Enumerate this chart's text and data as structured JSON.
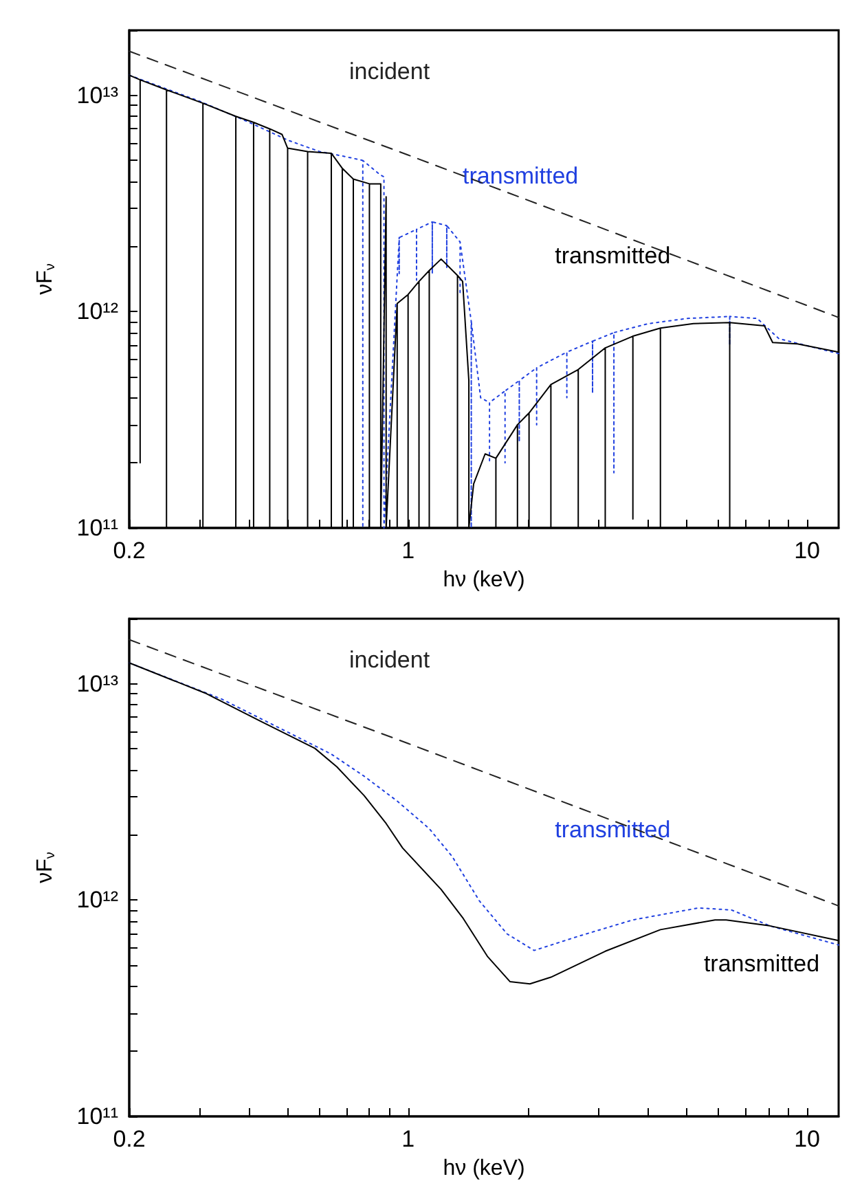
{
  "chart_data": [
    {
      "type": "line",
      "xlabel": "hν (keV)",
      "ylabel": "νF$_{ν}$",
      "log": "xy",
      "marker": "none",
      "xlim": [
        0.2,
        12
      ],
      "ylim": [
        100000000000.0,
        20000000000000.0
      ],
      "xticks": [
        0.2,
        {
          "value": 0.3,
          "label": null
        },
        {
          "value": 0.4,
          "label": null
        },
        {
          "value": 0.5,
          "label": null
        },
        {
          "value": 0.6,
          "label": null
        },
        {
          "value": 0.7,
          "label": null
        },
        {
          "value": 0.8,
          "label": null
        },
        {
          "value": 0.9,
          "label": null
        },
        1,
        {
          "value": 2,
          "label": null
        },
        {
          "value": 3,
          "label": null
        },
        {
          "value": 4,
          "label": null
        },
        {
          "value": 5,
          "label": null
        },
        {
          "value": 6,
          "label": null
        },
        {
          "value": 7,
          "label": null
        },
        {
          "value": 8,
          "label": null
        },
        {
          "value": 9,
          "label": null
        },
        10
      ],
      "yticks": [
        {
          "value": 100000000000.0,
          "label": "10¹¹"
        },
        {
          "value": 200000000000.0,
          "label": null
        },
        {
          "value": 300000000000.0,
          "label": null
        },
        {
          "value": 400000000000.0,
          "label": null
        },
        {
          "value": 500000000000.0,
          "label": null
        },
        {
          "value": 600000000000.0,
          "label": null
        },
        {
          "value": 700000000000.0,
          "label": null
        },
        {
          "value": 800000000000.0,
          "label": null
        },
        {
          "value": 900000000000.0,
          "label": null
        },
        {
          "value": 1000000000000.0,
          "label": "10¹²"
        },
        {
          "value": 2000000000000.0,
          "label": null
        },
        {
          "value": 3000000000000.0,
          "label": null
        },
        {
          "value": 4000000000000.0,
          "label": null
        },
        {
          "value": 5000000000000.0,
          "label": null
        },
        {
          "value": 6000000000000.0,
          "label": null
        },
        {
          "value": 7000000000000.0,
          "label": null
        },
        {
          "value": 8000000000000.0,
          "label": null
        },
        {
          "value": 9000000000000.0,
          "label": null
        },
        {
          "value": 10000000000000.0,
          "label": "10¹³"
        },
        {
          "value": 20000000000000.0,
          "label": null
        }
      ],
      "series": [
        {
          "name": "incident",
          "color": "#222222",
          "line_style": "dashed",
          "x": [
            0.2,
            1,
            12
          ],
          "values": [
            16000000000000.0,
            5300000000000.0,
            940000000000.0
          ]
        },
        {
          "name": "transmitted",
          "color": "#2040e0",
          "line_style": "dotted",
          "x": [
            0.2,
            0.3,
            0.4,
            0.5,
            0.6,
            0.7,
            0.77,
            0.77,
            0.77,
            0.85,
            0.87,
            0.87,
            0.95,
            0.95,
            0.95,
            1.05,
            1.05,
            1.05,
            1.15,
            1.15,
            1.15,
            1.25,
            1.25,
            1.25,
            1.35,
            1.35,
            1.35,
            1.44,
            1.44,
            1.44,
            1.52,
            1.6,
            1.6,
            1.6,
            1.75,
            1.75,
            1.75,
            1.9,
            1.9,
            1.9,
            2.1,
            2.1,
            2.1,
            2.5,
            2.5,
            2.5,
            2.9,
            2.9,
            2.9,
            3.28,
            3.28,
            3.28,
            4,
            5,
            6.4,
            6.4,
            6.4,
            7.5,
            8.5,
            12
          ],
          "values": [
            12400000000000.0,
            9400000000000.0,
            7500000000000.0,
            6200000000000.0,
            5500000000000.0,
            5200000000000.0,
            5000000000000.0,
            100000000000.0,
            5000000000000.0,
            4300000000000.0,
            4200000000000.0,
            100000000000.0,
            2200000000000.0,
            1500000000000.0,
            2200000000000.0,
            2400000000000.0,
            1400000000000.0,
            2400000000000.0,
            2600000000000.0,
            1500000000000.0,
            2600000000000.0,
            2500000000000.0,
            1600000000000.0,
            2500000000000.0,
            2100000000000.0,
            1200000000000.0,
            2100000000000.0,
            900000000000.0,
            100000000000.0,
            900000000000.0,
            400000000000.0,
            380000000000.0,
            200000000000.0,
            380000000000.0,
            430000000000.0,
            200000000000.0,
            430000000000.0,
            480000000000.0,
            250000000000.0,
            480000000000.0,
            550000000000.0,
            300000000000.0,
            550000000000.0,
            650000000000.0,
            400000000000.0,
            650000000000.0,
            730000000000.0,
            420000000000.0,
            730000000000.0,
            800000000000.0,
            180000000000.0,
            800000000000.0,
            880000000000.0,
            930000000000.0,
            950000000000.0,
            700000000000.0,
            950000000000.0,
            930000000000.0,
            750000000000.0,
            640000000000.0
          ]
        },
        {
          "name": "transmitted",
          "color": "#000000",
          "line_style": "solid",
          "x": [
            0.2,
            0.213,
            0.213,
            0.213,
            0.248,
            0.248,
            0.248,
            0.306,
            0.306,
            0.306,
            0.37,
            0.37,
            0.37,
            0.41,
            0.41,
            0.41,
            0.45,
            0.45,
            0.45,
            0.483,
            0.499,
            0.499,
            0.499,
            0.56,
            0.56,
            0.56,
            0.642,
            0.642,
            0.642,
            0.684,
            0.684,
            0.684,
            0.729,
            0.729,
            0.729,
            0.8,
            0.8,
            0.8,
            0.854,
            0.854,
            0.881,
            0.881,
            0.939,
            0.939,
            0.939,
            1.0,
            1.0,
            1.0,
            1.065,
            1.065,
            1.065,
            1.13,
            1.13,
            1.13,
            1.21,
            1.33,
            1.33,
            1.33,
            1.37,
            1.42,
            1.42,
            1.46,
            1.56,
            1.66,
            1.66,
            1.66,
            1.88,
            1.88,
            1.88,
            2.01,
            2.01,
            2.01,
            2.28,
            2.28,
            2.28,
            2.67,
            2.67,
            2.67,
            3.12,
            3.12,
            3.12,
            3.66,
            3.66,
            3.66,
            4.29,
            4.29,
            4.29,
            5.19,
            6.4,
            6.4,
            6.4,
            7.82,
            8.2,
            9.46,
            12
          ],
          "values": [
            12400000000000.0,
            11800000000000.0,
            200000000000.0,
            11800000000000.0,
            10600000000000.0,
            100000000000.0,
            10600000000000.0,
            9200000000000.0,
            100000000000.0,
            9200000000000.0,
            8000000000000.0,
            100000000000.0,
            8000000000000.0,
            7500000000000.0,
            100000000000.0,
            7500000000000.0,
            7000000000000.0,
            100000000000.0,
            7000000000000.0,
            6600000000000.0,
            5700000000000.0,
            100000000000.0,
            5700000000000.0,
            5500000000000.0,
            100000000000.0,
            5500000000000.0,
            5400000000000.0,
            100000000000.0,
            5400000000000.0,
            4600000000000.0,
            100000000000.0,
            4600000000000.0,
            4100000000000.0,
            100000000000.0,
            4100000000000.0,
            3900000000000.0,
            100000000000.0,
            3900000000000.0,
            3900000000000.0,
            100000000000.0,
            3400000000000.0,
            100000000000.0,
            1090000000000.0,
            100000000000.0,
            1090000000000.0,
            1200000000000.0,
            100000000000.0,
            1200000000000.0,
            1380000000000.0,
            100000000000.0,
            1380000000000.0,
            1550000000000.0,
            100000000000.0,
            1550000000000.0,
            1750000000000.0,
            1470000000000.0,
            100000000000.0,
            1470000000000.0,
            1380000000000.0,
            480000000000.0,
            100000000000.0,
            160000000000.0,
            220000000000.0,
            210000000000.0,
            100000000000.0,
            210000000000.0,
            300000000000.0,
            100000000000.0,
            300000000000.0,
            340000000000.0,
            100000000000.0,
            340000000000.0,
            460000000000.0,
            100000000000.0,
            460000000000.0,
            540000000000.0,
            100000000000.0,
            540000000000.0,
            680000000000.0,
            100000000000.0,
            680000000000.0,
            770000000000.0,
            110000000000.0,
            770000000000.0,
            840000000000.0,
            100000000000.0,
            840000000000.0,
            880000000000.0,
            890000000000.0,
            100000000000.0,
            890000000000.0,
            860000000000.0,
            720000000000.0,
            710000000000.0,
            650000000000.0
          ]
        }
      ]
    },
    {
      "type": "line",
      "xlabel": "hν (keV)",
      "ylabel": "νF$_{ν}$",
      "log": "xy",
      "marker": "none",
      "xlim": [
        0.2,
        12
      ],
      "ylim": [
        100000000000.0,
        20000000000000.0
      ],
      "xticks": [
        0.2,
        {
          "value": 0.3,
          "label": null
        },
        {
          "value": 0.4,
          "label": null
        },
        {
          "value": 0.5,
          "label": null
        },
        {
          "value": 0.6,
          "label": null
        },
        {
          "value": 0.7,
          "label": null
        },
        {
          "value": 0.8,
          "label": null
        },
        {
          "value": 0.9,
          "label": null
        },
        1,
        {
          "value": 2,
          "label": null
        },
        {
          "value": 3,
          "label": null
        },
        {
          "value": 4,
          "label": null
        },
        {
          "value": 5,
          "label": null
        },
        {
          "value": 6,
          "label": null
        },
        {
          "value": 7,
          "label": null
        },
        {
          "value": 8,
          "label": null
        },
        {
          "value": 9,
          "label": null
        },
        10
      ],
      "yticks": [
        {
          "value": 100000000000.0,
          "label": "10¹¹"
        },
        {
          "value": 200000000000.0,
          "label": null
        },
        {
          "value": 300000000000.0,
          "label": null
        },
        {
          "value": 400000000000.0,
          "label": null
        },
        {
          "value": 500000000000.0,
          "label": null
        },
        {
          "value": 600000000000.0,
          "label": null
        },
        {
          "value": 700000000000.0,
          "label": null
        },
        {
          "value": 800000000000.0,
          "label": null
        },
        {
          "value": 900000000000.0,
          "label": null
        },
        {
          "value": 1000000000000.0,
          "label": "10¹²"
        },
        {
          "value": 2000000000000.0,
          "label": null
        },
        {
          "value": 3000000000000.0,
          "label": null
        },
        {
          "value": 4000000000000.0,
          "label": null
        },
        {
          "value": 5000000000000.0,
          "label": null
        },
        {
          "value": 6000000000000.0,
          "label": null
        },
        {
          "value": 7000000000000.0,
          "label": null
        },
        {
          "value": 8000000000000.0,
          "label": null
        },
        {
          "value": 9000000000000.0,
          "label": null
        },
        {
          "value": 10000000000000.0,
          "label": "10¹³"
        },
        {
          "value": 20000000000000.0,
          "label": null
        }
      ],
      "series": [
        {
          "name": "incident",
          "color": "#222222",
          "line_style": "dashed",
          "x": [
            0.2,
            1,
            12
          ],
          "values": [
            16000000000000.0,
            5300000000000.0,
            940000000000.0
          ]
        },
        {
          "name": "transmitted",
          "color": "#2040e0",
          "line_style": "dotted",
          "x": [
            0.2,
            0.341,
            0.499,
            0.642,
            0.776,
            0.939,
            1.13,
            1.29,
            1.51,
            1.77,
            2.07,
            2.67,
            3.66,
            5.35,
            6.47,
            8.07,
            12
          ],
          "values": [
            12500000000000.0,
            8500000000000.0,
            5980000000000.0,
            4730000000000.0,
            3740000000000.0,
            2870000000000.0,
            2140000000000.0,
            1590000000000.0,
            990000000000.0,
            698000000000.0,
            585000000000.0,
            680000000000.0,
            810000000000.0,
            920000000000.0,
            900000000000.0,
            760000000000.0,
            620000000000.0
          ]
        },
        {
          "name": "transmitted",
          "color": "#000000",
          "line_style": "solid",
          "x": [
            0.2,
            0.31,
            0.425,
            0.584,
            0.663,
            0.776,
            0.881,
            0.969,
            1.21,
            1.37,
            1.58,
            1.8,
            2.02,
            2.28,
            3.12,
            4.29,
            5.88,
            6.27,
            8.07,
            12
          ],
          "values": [
            12500000000000.0,
            9060000000000.0,
            6740000000000.0,
            5030000000000.0,
            4130000000000.0,
            3040000000000.0,
            2260000000000.0,
            1740000000000.0,
            1120000000000.0,
            830000000000.0,
            550000000000.0,
            420000000000.0,
            410000000000.0,
            440000000000.0,
            580000000000.0,
            730000000000.0,
            810000000000.0,
            810000000000.0,
            760000000000.0,
            650000000000.0
          ]
        }
      ]
    }
  ]
}
